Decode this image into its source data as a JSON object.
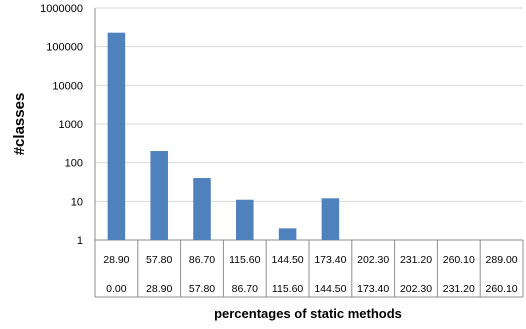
{
  "chart_data": {
    "type": "bar",
    "title": "",
    "xlabel": "percentages of static methods",
    "ylabel": "#classes",
    "yscale": "log",
    "ylim": [
      1,
      1000000
    ],
    "ytick_labels": [
      "1",
      "10",
      "100",
      "1000",
      "10000",
      "100000",
      "1000000"
    ],
    "grid": true,
    "legend": "none",
    "bar_color": "#4F81BD",
    "categories": [
      {
        "upper": "28.90",
        "lower": "0.00"
      },
      {
        "upper": "57.80",
        "lower": "28.90"
      },
      {
        "upper": "86.70",
        "lower": "57.80"
      },
      {
        "upper": "115.60",
        "lower": "86.70"
      },
      {
        "upper": "144.50",
        "lower": "115.60"
      },
      {
        "upper": "173.40",
        "lower": "144.50"
      },
      {
        "upper": "202.30",
        "lower": "173.40"
      },
      {
        "upper": "231.20",
        "lower": "202.30"
      },
      {
        "upper": "260.10",
        "lower": "231.20"
      },
      {
        "upper": "289.00",
        "lower": "260.10"
      }
    ],
    "values": [
      230000,
      200,
      40,
      11,
      2,
      12,
      0,
      0,
      0,
      0
    ]
  }
}
